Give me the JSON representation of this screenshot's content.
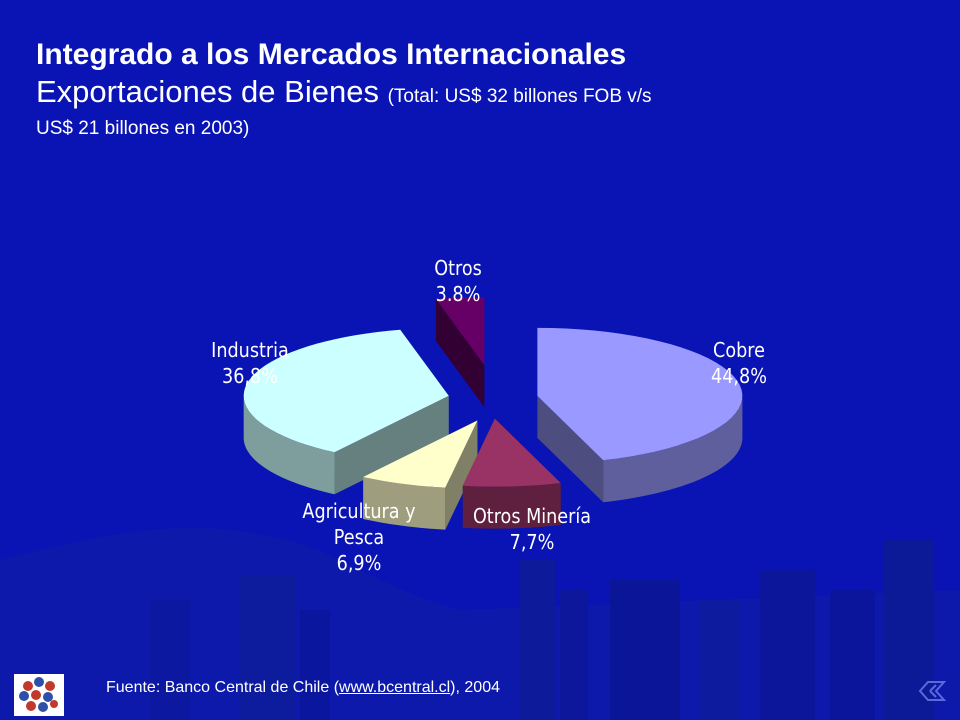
{
  "slide": {
    "title": "Integrado a los Mercados Internacionales",
    "subtitle": "Exportaciones de Bienes",
    "subtitle_note": "(Total: US$ 32 billones FOB v/s",
    "subtitle_note_cont": "US$ 21 billones en 2003)"
  },
  "labels": {
    "otros": [
      "Otros",
      "3.8%"
    ],
    "cobre": [
      "Cobre",
      "44,8%"
    ],
    "industria": [
      "Industria",
      "36,8%"
    ],
    "agricultura": [
      "Agricultura y",
      "Pesca",
      "6,9%"
    ],
    "otros_mineria": [
      "Otros Minería",
      "7,7%"
    ]
  },
  "source": {
    "prefix": "Fuente: Banco Central de Chile (",
    "link_text": "www.bcentral.cl",
    "suffix": "), 2004"
  },
  "colors": {
    "background": "#0a14b4",
    "cobre": "#9999ff",
    "otros_mineria": "#993366",
    "agricultura": "#ffffcc",
    "industria": "#ccffff",
    "otros": "#660066"
  },
  "icons": {
    "logo": "banco-central-logo",
    "nav": "navigation-icon"
  },
  "chart_data": {
    "type": "pie",
    "title": "",
    "categories": [
      "Cobre",
      "Otros Minería",
      "Agricultura y Pesca",
      "Industria",
      "Otros"
    ],
    "values": [
      44.8,
      7.7,
      6.9,
      36.8,
      3.8
    ],
    "units": "%",
    "exploded": true,
    "style": "3d"
  }
}
